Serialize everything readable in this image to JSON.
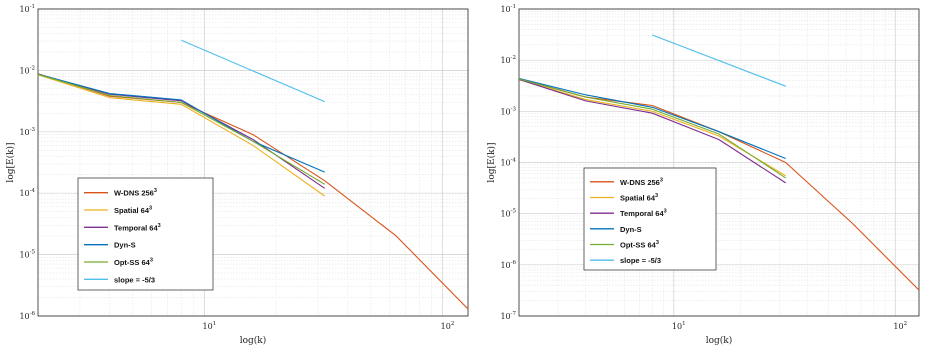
{
  "chart_data": [
    {
      "type": "line",
      "title": "",
      "xlabel": "log(k)",
      "ylabel": "log[E(k)]",
      "xscale": "log",
      "yscale": "log",
      "xlim": [
        2,
        128
      ],
      "ylim": [
        1e-06,
        0.1
      ],
      "grid": true,
      "minor_grid": true,
      "legend_position": "lower-left",
      "x_tick_labels": [
        {
          "base": "10",
          "exp": "1",
          "value": 10
        },
        {
          "base": "10",
          "exp": "2",
          "value": 100
        }
      ],
      "y_tick_labels": [
        {
          "base": "10",
          "exp": "-6",
          "value": 1e-06
        },
        {
          "base": "10",
          "exp": "-5",
          "value": 1e-05
        },
        {
          "base": "10",
          "exp": "-4",
          "value": 0.0001
        },
        {
          "base": "10",
          "exp": "-3",
          "value": 0.001
        },
        {
          "base": "10",
          "exp": "-2",
          "value": 0.01
        },
        {
          "base": "10",
          "exp": "-1",
          "value": 0.1
        }
      ],
      "series": [
        {
          "name": "W-DNS 256",
          "sup": "3",
          "color": "#d95319",
          "x": [
            2,
            4,
            8,
            16,
            32,
            64,
            128
          ],
          "y": [
            0.0088,
            0.0038,
            0.003,
            0.0009,
            0.00016,
            2e-05,
            1.3e-06
          ]
        },
        {
          "name": "Spatial 64",
          "sup": "3",
          "color": "#edb120",
          "x": [
            2,
            4,
            8,
            16,
            32
          ],
          "y": [
            0.0085,
            0.0036,
            0.0028,
            0.0006,
            9e-05
          ]
        },
        {
          "name": "Temporal 64",
          "sup": "3",
          "color": "#7e2f8e",
          "x": [
            2,
            4,
            8,
            16,
            32
          ],
          "y": [
            0.0087,
            0.0041,
            0.0032,
            0.00075,
            0.00012
          ]
        },
        {
          "name": "Dyn-S",
          "sup": "",
          "color": "#0072bd",
          "x": [
            2,
            4,
            8,
            16,
            32
          ],
          "y": [
            0.0087,
            0.0042,
            0.0033,
            0.0007,
            0.00022
          ]
        },
        {
          "name": "Opt-SS 64",
          "sup": "3",
          "color": "#77ac30",
          "x": [
            2,
            4,
            8,
            16,
            32
          ],
          "y": [
            0.0086,
            0.0039,
            0.003,
            0.0007,
            0.00014
          ]
        },
        {
          "name": "slope = -5/3",
          "sup": "",
          "color": "#4dbeee",
          "x": [
            8,
            32
          ],
          "y": [
            0.031,
            0.0031
          ]
        }
      ]
    },
    {
      "type": "line",
      "title": "",
      "xlabel": "log(k)",
      "ylabel": "log[E(k)]",
      "xscale": "log",
      "yscale": "log",
      "xlim": [
        2,
        128
      ],
      "ylim": [
        1e-07,
        0.1
      ],
      "grid": true,
      "minor_grid": true,
      "legend_position": "lower-left",
      "x_tick_labels": [
        {
          "base": "10",
          "exp": "1",
          "value": 10
        },
        {
          "base": "10",
          "exp": "2",
          "value": 100
        }
      ],
      "y_tick_labels": [
        {
          "base": "10",
          "exp": "-7",
          "value": 1e-07
        },
        {
          "base": "10",
          "exp": "-6",
          "value": 1e-06
        },
        {
          "base": "10",
          "exp": "-5",
          "value": 1e-05
        },
        {
          "base": "10",
          "exp": "-4",
          "value": 0.0001
        },
        {
          "base": "10",
          "exp": "-3",
          "value": 0.001
        },
        {
          "base": "10",
          "exp": "-2",
          "value": 0.01
        },
        {
          "base": "10",
          "exp": "-1",
          "value": 0.1
        }
      ],
      "series": [
        {
          "name": "W-DNS 256",
          "sup": "3",
          "color": "#d95319",
          "x": [
            2,
            4,
            8,
            16,
            32,
            64,
            128
          ],
          "y": [
            0.0043,
            0.0019,
            0.0013,
            0.0004,
            0.0001,
            6.5e-06,
            3.2e-07
          ]
        },
        {
          "name": "Spatial 64",
          "sup": "3",
          "color": "#edb120",
          "x": [
            2,
            4,
            8,
            16,
            32
          ],
          "y": [
            0.0042,
            0.0017,
            0.001,
            0.00033,
            5.5e-05
          ]
        },
        {
          "name": "Temporal 64",
          "sup": "3",
          "color": "#7e2f8e",
          "x": [
            2,
            4,
            8,
            16,
            32
          ],
          "y": [
            0.0042,
            0.0016,
            0.00092,
            0.00028,
            4e-05
          ]
        },
        {
          "name": "Dyn-S",
          "sup": "",
          "color": "#0072bd",
          "x": [
            2,
            4,
            8,
            16,
            32
          ],
          "y": [
            0.0044,
            0.0021,
            0.0012,
            0.0004,
            0.00012
          ]
        },
        {
          "name": "Opt-SS 64",
          "sup": "3",
          "color": "#77ac30",
          "x": [
            2,
            4,
            8,
            16,
            32
          ],
          "y": [
            0.0043,
            0.0019,
            0.0011,
            0.00036,
            5e-05
          ]
        },
        {
          "name": "slope = -5/3",
          "sup": "",
          "color": "#4dbeee",
          "x": [
            8,
            32
          ],
          "y": [
            0.031,
            0.0031
          ]
        }
      ]
    }
  ]
}
